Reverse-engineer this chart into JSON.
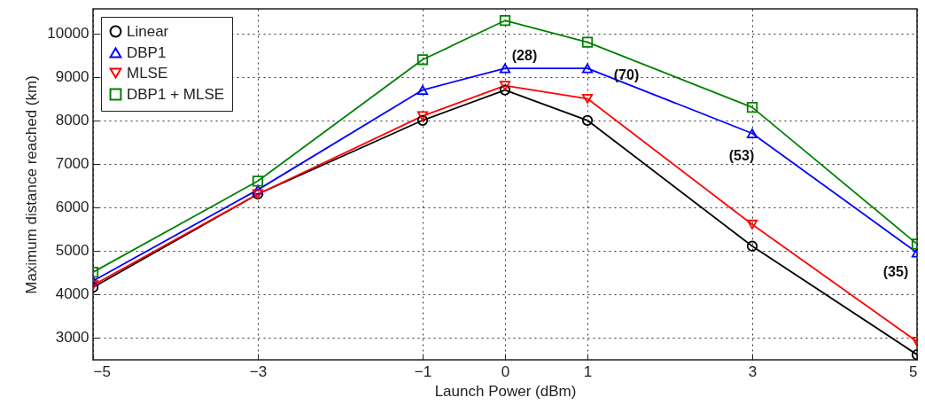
{
  "chart_data": {
    "type": "line",
    "xlabel": "Launch Power (dBm)",
    "ylabel": "Maximum distance reached (km)",
    "x": [
      -5,
      -3,
      -1,
      0,
      1,
      3,
      5
    ],
    "series": [
      {
        "name": "Linear",
        "color": "#000000",
        "marker": "circle",
        "values": [
          4150,
          6300,
          8000,
          8700,
          8000,
          5100,
          2600
        ]
      },
      {
        "name": "DBP1",
        "color": "#0000ff",
        "marker": "triangle",
        "values": [
          4300,
          6400,
          8700,
          9200,
          9200,
          7700,
          4950
        ]
      },
      {
        "name": "MLSE",
        "color": "#ff0000",
        "marker": "triangle-down",
        "values": [
          4200,
          6300,
          8100,
          8800,
          8500,
          5600,
          2900
        ]
      },
      {
        "name": "DBP1 + MLSE",
        "color": "#008000",
        "marker": "square",
        "values": [
          4500,
          6600,
          9400,
          10300,
          9800,
          8300,
          5150
        ]
      }
    ],
    "xlim": [
      -5,
      5
    ],
    "xticks": [
      -5,
      -3,
      -1,
      0,
      1,
      3,
      5
    ],
    "ylim": [
      2480,
      10570
    ],
    "yticks": [
      3000,
      4000,
      5000,
      6000,
      7000,
      8000,
      9000,
      10000
    ],
    "grid": true,
    "legend": "top left",
    "line_style": "solid",
    "annotations": [
      {
        "text": "(28)",
        "x": 0,
        "y": 9200
      },
      {
        "text": "(70)",
        "x": 1,
        "y": 9200
      },
      {
        "text": "(53)",
        "x": 3,
        "y": 7700
      },
      {
        "text": "(35)",
        "x": 5,
        "y": 4950
      }
    ]
  }
}
